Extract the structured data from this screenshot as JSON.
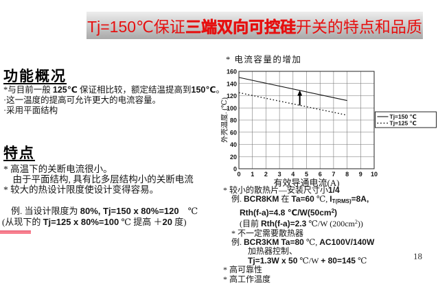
{
  "colors": {
    "accent": "#e60f0f",
    "bar-top": "#ededed",
    "bar-bottom": "#a9a9a9",
    "pink": "#f8808f",
    "pink-edge": "#e0506a"
  },
  "title": {
    "prefix": "Tj=150℃保证",
    "emphasis": "三端双向可控硅",
    "suffix": "开关的特点和品质"
  },
  "left": {
    "overview_heading": "功能概况",
    "overview_lines": [
      [
        {
          "t": "*与目前一般 "
        },
        {
          "t": "125℃",
          "b": 1
        },
        {
          "t": " 保证相比较，额定结温提高到"
        },
        {
          "t": "150℃",
          "b": 1
        },
        {
          "t": "。"
        }
      ],
      [
        {
          "t": "·这一温度的提高可允许更大的电流容量。"
        }
      ],
      [
        {
          "t": "·采用平面结构"
        }
      ]
    ],
    "features_heading": "特点",
    "features_lines": [
      [
        {
          "t": "* 高温下的关断电流很小。"
        }
      ],
      [
        {
          "t": "　由于平面结构, 具有比多层结构小的关断电流"
        }
      ],
      [
        {
          "t": "* 较大的热设计限度使设计变得容易。"
        }
      ]
    ],
    "example_lines": [
      [
        {
          "t": "　例. 当设计限度为 "
        },
        {
          "t": "80%, Tj=150 x 80%=120",
          "b": 1
        },
        {
          "t": "　℃"
        }
      ],
      [
        {
          "t": "(从现下的 "
        },
        {
          "t": "Tj=125 x 80%=100",
          "b": 1
        },
        {
          "t": " ℃ 提高 ＋"
        },
        {
          "t": "20",
          "b": 1
        },
        {
          "t": " 度)"
        }
      ]
    ]
  },
  "right": {
    "chart_note": "* 电流容量的增加",
    "detail_lines": [
      [
        {
          "t": "* 较小的散热片—安装尺寸小"
        },
        {
          "t": "1/4",
          "b": 1
        }
      ],
      [
        {
          "t": "　例. "
        },
        {
          "t": "BCR8KM",
          "b": 1
        },
        {
          "t": " 在 "
        },
        {
          "t": "Ta=60",
          "b": 1
        },
        {
          "t": " ℃, "
        },
        {
          "t": "I",
          "b": 1
        },
        {
          "t": "T(RMS)",
          "b": 1,
          "sub": 1
        },
        {
          "t": "=8A,",
          "b": 1
        }
      ],
      [
        {
          "t": "　　"
        },
        {
          "t": "Rth(f-a)=4.8",
          "b": 1
        },
        {
          "t": " ℃/W(50cm",
          "b": 1
        },
        {
          "t": "2",
          "b": 1,
          "sup": 1
        },
        {
          "t": ")",
          "b": 1
        }
      ],
      [
        {
          "t": "　　(目前 "
        },
        {
          "t": "Rth(f-a)=2.3",
          "b": 1
        },
        {
          "t": " ℃/W (200cm"
        },
        {
          "t": "2",
          "sup": 1
        },
        {
          "t": "))"
        }
      ],
      [
        {
          "t": "　* 不一定需要散热器"
        }
      ],
      [
        {
          "t": "　例. "
        },
        {
          "t": "BCR3KM",
          "b": 1
        },
        {
          "t": " "
        },
        {
          "t": "Ta=80",
          "b": 1
        },
        {
          "t": " ℃, "
        },
        {
          "t": "AC100V/140W",
          "b": 1
        }
      ],
      [
        {
          "t": "　　　加热器控制、"
        }
      ],
      [
        {
          "t": "　　　"
        },
        {
          "t": "Tj=1.3W x 50",
          "b": 1
        },
        {
          "t": " ℃/W "
        },
        {
          "t": "+ 80=145",
          "b": 1
        },
        {
          "t": " ℃"
        }
      ],
      [
        {
          "t": "* 高可靠性"
        }
      ],
      [
        {
          "t": "* 高工作温度"
        }
      ]
    ],
    "page_number": "18"
  },
  "chart_data": {
    "type": "line",
    "title": "电流容量的增加",
    "xlabel": "有效导通电流(A)",
    "ylabel": "外壳温度. (℃)",
    "xlim": [
      0,
      10
    ],
    "ylim": [
      0,
      160
    ],
    "xticks": [
      0,
      1,
      2,
      3,
      4,
      5,
      6,
      7,
      8,
      9,
      10
    ],
    "yticks": [
      0,
      20,
      40,
      60,
      80,
      100,
      120,
      140,
      160
    ],
    "grid": true,
    "legend_position": "right",
    "series": [
      {
        "name": "Tj=150 ℃",
        "style": "solid",
        "points": [
          [
            0,
            150
          ],
          [
            8,
            112
          ]
        ]
      },
      {
        "name": "Tj=125 ℃",
        "style": "dotted",
        "points": [
          [
            0,
            125
          ],
          [
            8,
            88
          ]
        ]
      }
    ],
    "annotation": {
      "type": "up-arrow",
      "x": 4.5,
      "y_from": 104,
      "y_to": 129
    }
  }
}
